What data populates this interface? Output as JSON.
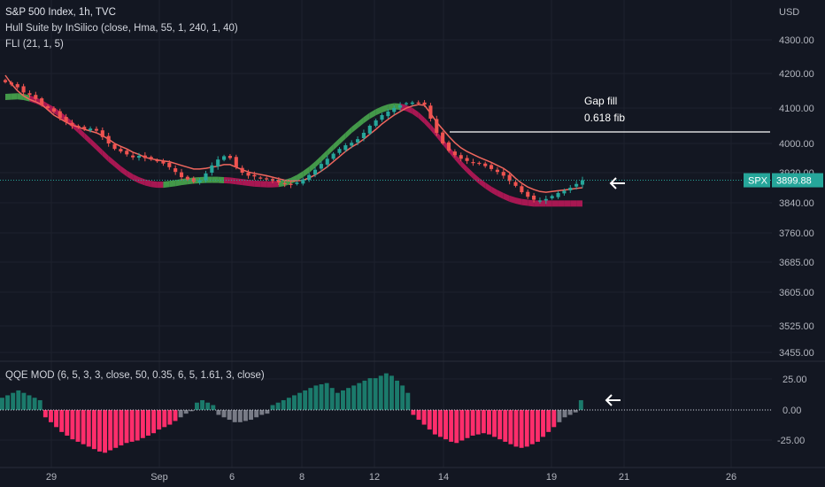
{
  "header": {
    "title": "S&P 500 Index, 1h, TVC",
    "indicator1": "Hull Suite by InSilico (close, Hma, 55, 1, 240, 1, 40)",
    "indicator2": "FLI (21, 1, 5)",
    "currency": "USD"
  },
  "oscillator": {
    "label": "QQE MOD (6, 5, 3, 3, close, 50, 0.35, 6, 5, 1.61, 3, close)",
    "ticks": [
      "25.00",
      "0.00",
      "-25.00"
    ]
  },
  "price_badge": {
    "symbol": "SPX",
    "value": "3899.88"
  },
  "annotations": {
    "line1": "Gap fill",
    "line2": "0.618 fib"
  },
  "colors": {
    "up": "#26a69a",
    "down": "#ef5350",
    "hull_up": "#4caf50",
    "hull_down": "#c2185b",
    "fli": "#f0675e",
    "qqe_pos": "#1b7a6b",
    "qqe_neg": "#ff2d6b",
    "qqe_neutral": "#787b86",
    "background": "#131722"
  },
  "chart_data": [
    {
      "type": "candlestick",
      "title": "S&P 500 Index, 1h, TVC",
      "y_ticks": [
        4300,
        4200,
        4100,
        4000,
        3920,
        3840,
        3760,
        3685,
        3605,
        3525,
        3455
      ],
      "y_tick_labels": [
        "4300.00",
        "4200.00",
        "4100.00",
        "4000.00",
        "3920.00",
        "3840.00",
        "3760.00",
        "3685.00",
        "3605.00",
        "3525.00",
        "3455.00"
      ],
      "x_tick_labels": [
        "29",
        "Sep",
        "6",
        "8",
        "12",
        "14",
        "19",
        "21",
        "26"
      ],
      "last_price": 3899.88,
      "candles_close": [
        4175,
        4168,
        4160,
        4145,
        4138,
        4126,
        4108,
        4100,
        4090,
        4072,
        4060,
        4050,
        4045,
        4040,
        4042,
        4036,
        4018,
        4000,
        3985,
        3978,
        3970,
        3962,
        3966,
        3960,
        3956,
        3952,
        3945,
        3935,
        3922,
        3908,
        3902,
        3896,
        3900,
        3918,
        3940,
        3956,
        3965,
        3960,
        3935,
        3920,
        3912,
        3910,
        3906,
        3902,
        3898,
        3894,
        3890,
        3888,
        3894,
        3902,
        3914,
        3928,
        3944,
        3958,
        3972,
        3985,
        3995,
        4002,
        4012,
        4030,
        4050,
        4065,
        4080,
        4090,
        4100,
        4108,
        4114,
        4116,
        4114,
        4110,
        4070,
        4030,
        4000,
        3980,
        3968,
        3958,
        3952,
        3948,
        3944,
        3938,
        3930,
        3922,
        3912,
        3898,
        3885,
        3868,
        3856,
        3848,
        3846,
        3850,
        3858,
        3866,
        3872,
        3880,
        3890,
        3900
      ],
      "hull_line": [
        4132,
        4133,
        4134,
        4132,
        4128,
        4122,
        4114,
        4104,
        4094,
        4082,
        4068,
        4054,
        4038,
        4022,
        4006,
        3990,
        3974,
        3958,
        3944,
        3930,
        3918,
        3908,
        3900,
        3894,
        3890,
        3888,
        3888,
        3890,
        3892,
        3895,
        3897,
        3899,
        3900,
        3901,
        3901,
        3901,
        3900,
        3899,
        3897,
        3895,
        3893,
        3891,
        3890,
        3889,
        3889,
        3890,
        3893,
        3898,
        3906,
        3916,
        3928,
        3942,
        3958,
        3974,
        3990,
        4006,
        4022,
        4038,
        4052,
        4066,
        4078,
        4088,
        4096,
        4102,
        4105,
        4104,
        4100,
        4092,
        4080,
        4064,
        4046,
        4026,
        4005,
        3984,
        3964,
        3945,
        3928,
        3912,
        3898,
        3886,
        3875,
        3866,
        3858,
        3851,
        3846,
        3842,
        3840,
        3838,
        3838,
        3838,
        3838,
        3838,
        3838,
        3838,
        3838,
        3838
      ],
      "hull_trend": [
        "up",
        "up",
        "up",
        "up",
        "down",
        "down",
        "down",
        "down",
        "down",
        "down",
        "down",
        "down",
        "down",
        "down",
        "down",
        "down",
        "down",
        "down",
        "down",
        "down",
        "down",
        "down",
        "down",
        "down",
        "down",
        "down",
        "up",
        "up",
        "up",
        "up",
        "up",
        "up",
        "up",
        "up",
        "up",
        "up",
        "down",
        "down",
        "down",
        "down",
        "down",
        "down",
        "down",
        "down",
        "down",
        "up",
        "up",
        "up",
        "up",
        "up",
        "up",
        "up",
        "up",
        "up",
        "up",
        "up",
        "up",
        "up",
        "up",
        "up",
        "up",
        "up",
        "up",
        "up",
        "up",
        "down",
        "down",
        "down",
        "down",
        "down",
        "down",
        "down",
        "down",
        "down",
        "down",
        "down",
        "down",
        "down",
        "down",
        "down",
        "down",
        "down",
        "down",
        "down",
        "down",
        "down",
        "down",
        "down",
        "down",
        "down",
        "down",
        "down",
        "down",
        "down",
        "down",
        "down"
      ],
      "fli_line": [
        4195,
        4170,
        4150,
        4135,
        4125,
        4118,
        4110,
        4095,
        4080,
        4070,
        4060,
        4052,
        4046,
        4040,
        4035,
        4030,
        4022,
        4012,
        4000,
        3992,
        3985,
        3976,
        3970,
        3962,
        3958,
        3955,
        3952,
        3950,
        3945,
        3940,
        3935,
        3930,
        3930,
        3932,
        3935,
        3938,
        3942,
        3942,
        3935,
        3928,
        3922,
        3918,
        3915,
        3912,
        3908,
        3904,
        3900,
        3898,
        3898,
        3900,
        3906,
        3914,
        3924,
        3936,
        3950,
        3964,
        3978,
        3990,
        4000,
        4012,
        4026,
        4040,
        4055,
        4068,
        4080,
        4090,
        4100,
        4106,
        4110,
        4108,
        4085,
        4060,
        4040,
        4020,
        4002,
        3988,
        3978,
        3970,
        3962,
        3955,
        3948,
        3940,
        3932,
        3920,
        3905,
        3892,
        3882,
        3875,
        3870,
        3868,
        3870,
        3872,
        3874,
        3876,
        3878,
        3880
      ]
    },
    {
      "type": "bar",
      "title": "QQE MOD (6, 5, 3, 3, close, 50, 0.35, 6, 5, 1.61, 3, close)",
      "y_ticks": [
        25,
        0,
        -25
      ],
      "values": [
        10,
        12,
        14,
        16,
        14,
        12,
        10,
        8,
        -6,
        -10,
        -14,
        -18,
        -21,
        -24,
        -26,
        -28,
        -30,
        -32,
        -34,
        -35,
        -33,
        -31,
        -29,
        -27,
        -26,
        -25,
        -23,
        -21,
        -19,
        -16,
        -14,
        -12,
        -9,
        -6,
        -3,
        -1,
        6,
        8,
        6,
        4,
        -4,
        -6,
        -8,
        -10,
        -10,
        -9,
        -8,
        -6,
        -4,
        -3,
        4,
        6,
        8,
        10,
        12,
        14,
        16,
        18,
        20,
        21,
        22,
        18,
        14,
        16,
        18,
        20,
        22,
        24,
        26,
        26,
        28,
        30,
        28,
        24,
        20,
        14,
        -4,
        -8,
        -12,
        -16,
        -20,
        -22,
        -24,
        -26,
        -27,
        -25,
        -23,
        -21,
        -20,
        -19,
        -20,
        -22,
        -24,
        -26,
        -28,
        -30,
        -31,
        -30,
        -28,
        -26,
        -22,
        -18,
        -14,
        -10,
        -6,
        -4,
        -2,
        8
      ],
      "bar_colors": [
        "pos",
        "pos",
        "pos",
        "pos",
        "pos",
        "pos",
        "pos",
        "pos",
        "neg",
        "neg",
        "neg",
        "neg",
        "neg",
        "neg",
        "neg",
        "neg",
        "neg",
        "neg",
        "neg",
        "neg",
        "neg",
        "neg",
        "neg",
        "neg",
        "neg",
        "neg",
        "neg",
        "neg",
        "neg",
        "neg",
        "neg",
        "neg",
        "neg",
        "neutral",
        "neutral",
        "neutral",
        "pos",
        "pos",
        "pos",
        "pos",
        "neutral",
        "neutral",
        "neutral",
        "neutral",
        "neutral",
        "neutral",
        "neutral",
        "neutral",
        "neutral",
        "neutral",
        "pos",
        "pos",
        "pos",
        "pos",
        "pos",
        "pos",
        "pos",
        "pos",
        "pos",
        "pos",
        "pos",
        "pos",
        "pos",
        "pos",
        "pos",
        "pos",
        "pos",
        "pos",
        "pos",
        "pos",
        "pos",
        "pos",
        "pos",
        "pos",
        "pos",
        "pos",
        "neg",
        "neg",
        "neg",
        "neg",
        "neg",
        "neg",
        "neg",
        "neg",
        "neg",
        "neg",
        "neg",
        "neg",
        "neg",
        "neg",
        "neg",
        "neg",
        "neg",
        "neg",
        "neg",
        "neg",
        "neg",
        "neg",
        "neg",
        "neg",
        "neg",
        "neg",
        "neg",
        "neutral",
        "neutral",
        "neutral",
        "neutral",
        "pos"
      ]
    }
  ]
}
